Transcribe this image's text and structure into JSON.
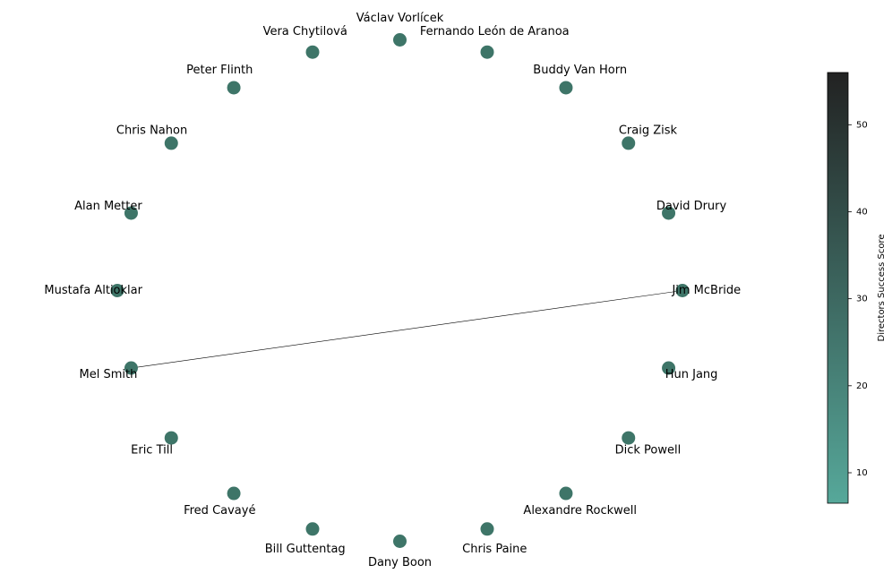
{
  "chart_data": {
    "type": "network",
    "layout": "circular",
    "node_color": "#3e7568",
    "edge_color": "#000000",
    "nodes": [
      {
        "name": "Jim McBride",
        "score": 30
      },
      {
        "name": "David Drury",
        "score": 30
      },
      {
        "name": "Craig Zisk",
        "score": 30
      },
      {
        "name": "Buddy Van Horn",
        "score": 30
      },
      {
        "name": "Fernando León de Aranoa",
        "score": 30
      },
      {
        "name": "Václav Vorlícek",
        "score": 30
      },
      {
        "name": "Vera Chytilová",
        "score": 30
      },
      {
        "name": "Peter Flinth",
        "score": 30
      },
      {
        "name": "Chris Nahon",
        "score": 30
      },
      {
        "name": "Alan Metter",
        "score": 30
      },
      {
        "name": "Mustafa Altioklar",
        "score": 30
      },
      {
        "name": "Mel Smith",
        "score": 30
      },
      {
        "name": "Eric Till",
        "score": 30
      },
      {
        "name": "Fred Cavayé",
        "score": 30
      },
      {
        "name": "Bill Guttentag",
        "score": 30
      },
      {
        "name": "Dany Boon",
        "score": 30
      },
      {
        "name": "Chris Paine",
        "score": 30
      },
      {
        "name": "Alexandre Rockwell",
        "score": 30
      },
      {
        "name": "Dick Powell",
        "score": 30
      },
      {
        "name": "Hun Jang",
        "score": 30
      }
    ],
    "edges": [
      {
        "source": "Jim McBride",
        "target": "Mel Smith"
      }
    ],
    "colorbar": {
      "label": "Directors Success Score",
      "min": 6.5,
      "max": 56,
      "ticks": [
        10,
        20,
        30,
        40,
        50
      ],
      "color_low": "#56a89a",
      "color_high": "#222222"
    }
  }
}
